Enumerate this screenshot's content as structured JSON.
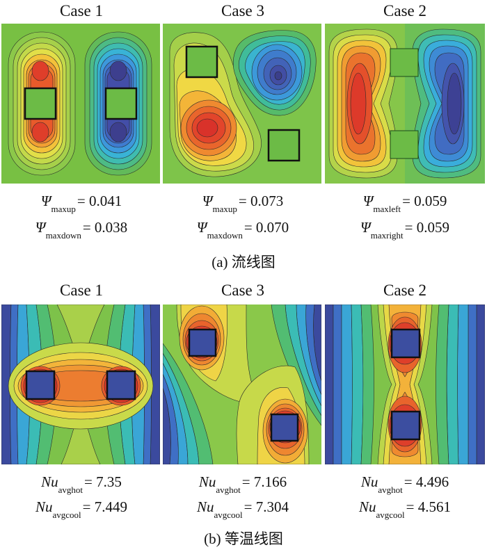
{
  "stream": {
    "panels": [
      {
        "case": "Case 1",
        "l1_sym": "Ψ",
        "l1_sub": "maxup",
        "l1_val": "= 0.041",
        "l2_sym": "Ψ",
        "l2_sub": "maxdown",
        "l2_val": "= 0.038"
      },
      {
        "case": "Case 3",
        "l1_sym": "Ψ",
        "l1_sub": "maxup",
        "l1_val": "= 0.073",
        "l2_sym": "Ψ",
        "l2_sub": "maxdown",
        "l2_val": "= 0.070"
      },
      {
        "case": "Case 2",
        "l1_sym": "Ψ",
        "l1_sub": "maxleft",
        "l1_val": "= 0.059",
        "l2_sym": "Ψ",
        "l2_sub": "maxright",
        "l2_val": "= 0.059"
      }
    ],
    "caption": "(a) 流线图"
  },
  "iso": {
    "panels": [
      {
        "case": "Case 1",
        "l1_sym": "Nu",
        "l1_sub": "avghot",
        "l1_val": "= 7.35",
        "l2_sym": "Nu",
        "l2_sub": "avgcool",
        "l2_val": "= 7.449"
      },
      {
        "case": "Case 3",
        "l1_sym": "Nu",
        "l1_sub": "avghot",
        "l1_val": "= 7.166",
        "l2_sym": "Nu",
        "l2_sub": "avgcool",
        "l2_val": "= 7.304"
      },
      {
        "case": "Case 2",
        "l1_sym": "Nu",
        "l1_sub": "avghot",
        "l1_val": "= 4.496",
        "l2_sym": "Nu",
        "l2_sub": "avgcool",
        "l2_val": "= 4.561"
      }
    ],
    "caption": "(b) 等温线图"
  },
  "colors": {
    "hot": "#e0342a",
    "mid": "#7ec44a",
    "cold": "#3a4aa0",
    "block_green": "#6cbb46",
    "block_blue": "#3c4ea0"
  }
}
